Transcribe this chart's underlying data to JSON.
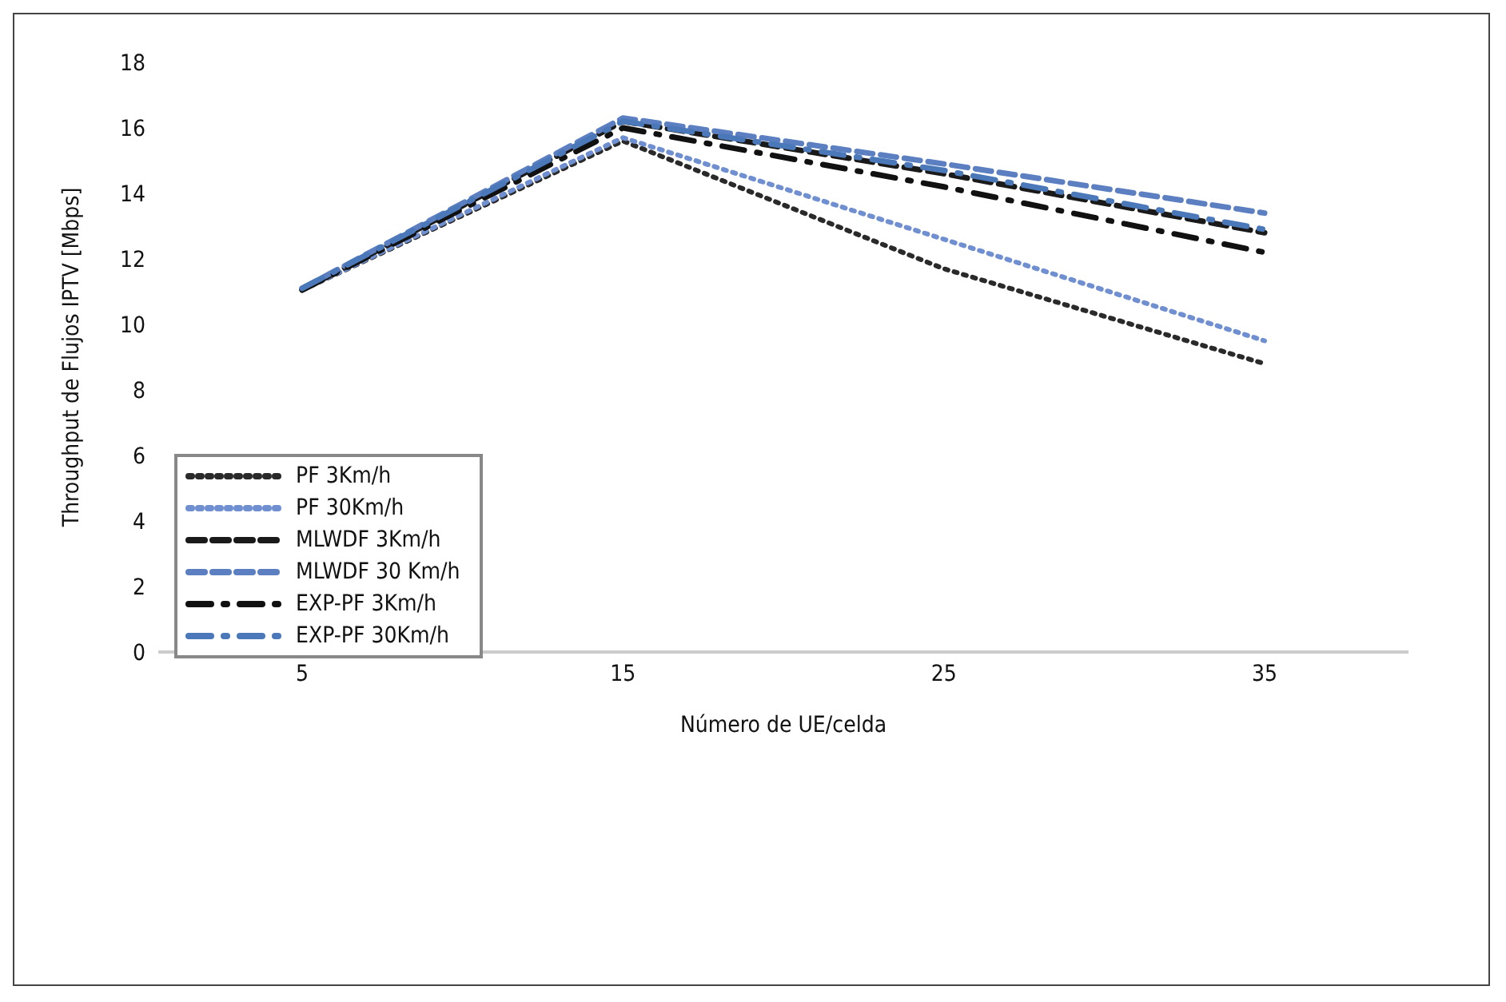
{
  "chart_data": {
    "type": "line",
    "xlabel": "Número de UE/celda",
    "ylabel": "Throughput de Flujos IPTV [Mbps]",
    "categories": [
      "5",
      "15",
      "25",
      "35"
    ],
    "ylim": [
      0,
      18
    ],
    "yticks": [
      0,
      2,
      4,
      6,
      8,
      10,
      12,
      14,
      16,
      18
    ],
    "grid": false,
    "legend": "bottom left",
    "marker": "none",
    "series": [
      {
        "name": "PF 3Km/h",
        "color": "#2a2a2a",
        "line_style": "dotted",
        "values": [
          11.05,
          15.6,
          11.7,
          8.8
        ]
      },
      {
        "name": "PF 30Km/h",
        "color": "#6f8fd0",
        "line_style": "dotted",
        "values": [
          11.05,
          15.7,
          12.6,
          9.5
        ]
      },
      {
        "name": "MLWDF 3Km/h",
        "color": "#1a1a1a",
        "line_style": "dashed",
        "values": [
          11.05,
          16.2,
          14.6,
          12.8
        ]
      },
      {
        "name": "MLWDF 30 Km/h",
        "color": "#5b7fc0",
        "line_style": "dashed",
        "values": [
          11.1,
          16.3,
          14.9,
          13.4
        ]
      },
      {
        "name": "EXP-PF 3Km/h",
        "color": "#111111",
        "line_style": "dashdot",
        "values": [
          11.05,
          16.0,
          14.2,
          12.2
        ]
      },
      {
        "name": "EXP-PF 30Km/h",
        "color": "#4a78b8",
        "line_style": "dashdot",
        "values": [
          11.1,
          16.2,
          14.7,
          12.9
        ]
      }
    ]
  }
}
